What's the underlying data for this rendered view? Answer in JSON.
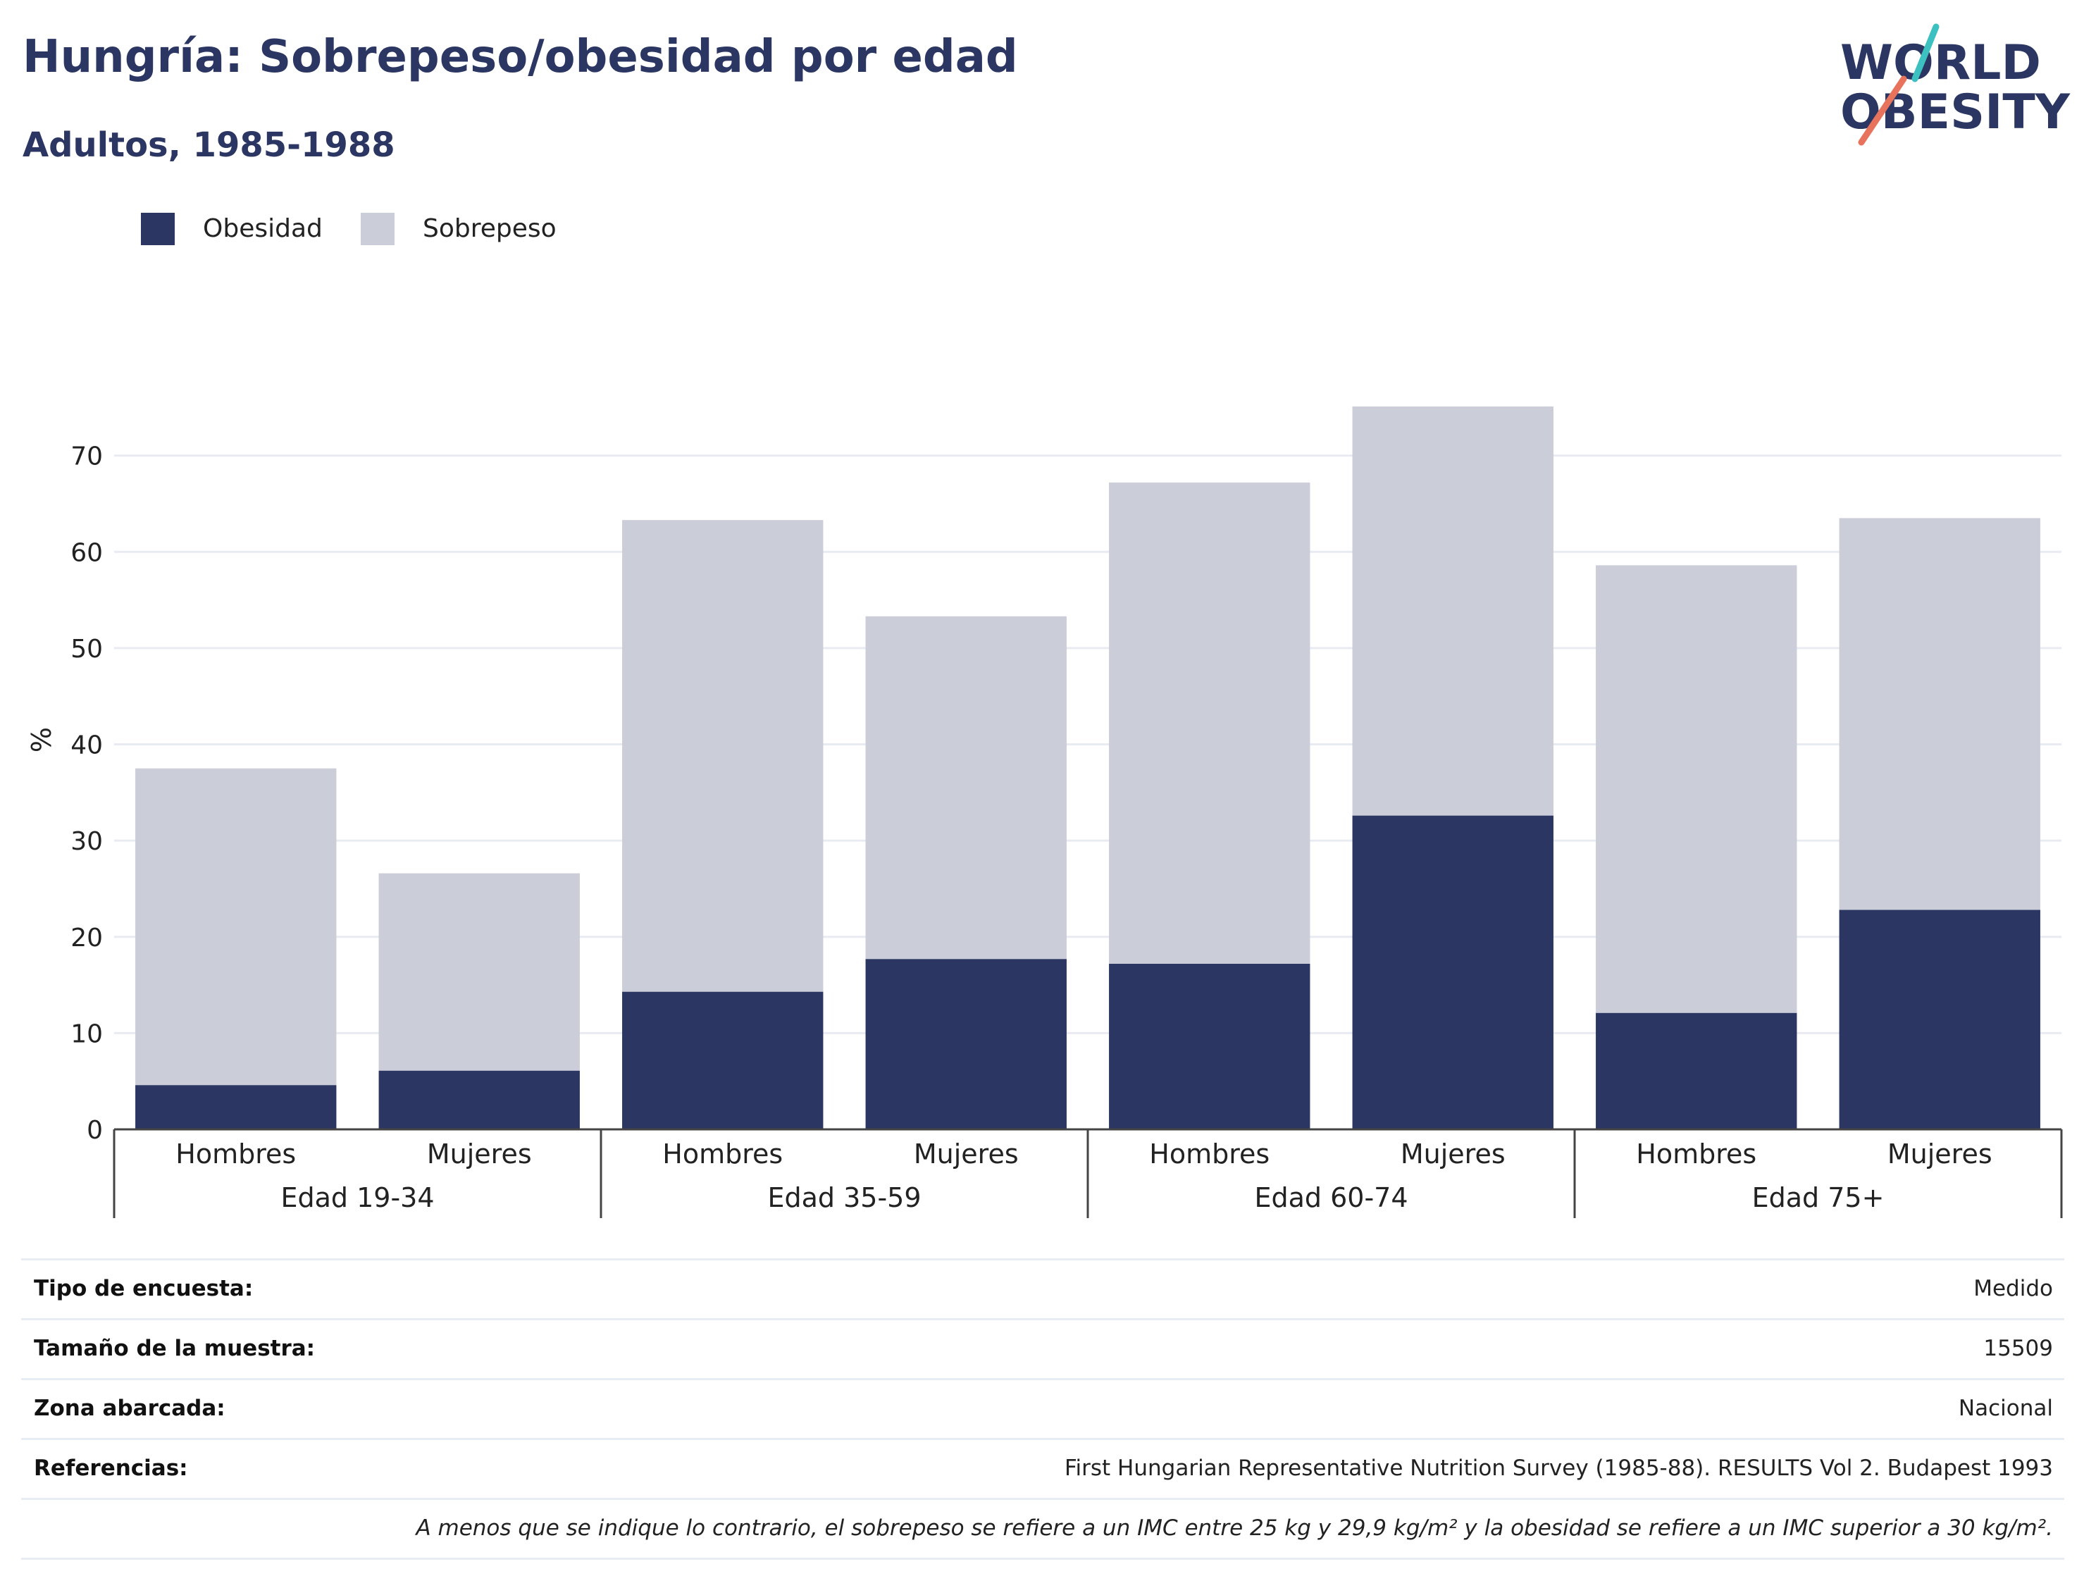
{
  "header": {
    "title": "Hungría: Sobrepeso/obesidad por edad",
    "subtitle": "Adultos, 1985-1988"
  },
  "logo": {
    "line1": "WORLD",
    "line2": "OBESITY",
    "colors": {
      "text": "#2b3663",
      "slash_teal": "#3cc0c0",
      "slash_coral": "#e8735c"
    }
  },
  "legend": [
    {
      "label": "Obesidad",
      "color": "#2b3663"
    },
    {
      "label": "Sobrepeso",
      "color": "#cbcdd9"
    }
  ],
  "chart_data": {
    "type": "bar",
    "stacked": true,
    "ylabel": "%",
    "ylim": [
      0,
      80
    ],
    "yticks": [
      0,
      10,
      20,
      30,
      40,
      50,
      60,
      70
    ],
    "grid": true,
    "legend_position": "top-left",
    "groups": [
      "Edad 19-34",
      "Edad 35-59",
      "Edad 60-74",
      "Edad 75+"
    ],
    "categories": [
      "Hombres",
      "Mujeres",
      "Hombres",
      "Mujeres",
      "Hombres",
      "Mujeres",
      "Hombres",
      "Mujeres"
    ],
    "series": [
      {
        "name": "Obesidad",
        "color": "#2b3663",
        "values": [
          4.6,
          6.1,
          14.3,
          17.7,
          17.2,
          32.6,
          12.1,
          22.8
        ]
      },
      {
        "name": "Sobrepeso",
        "color": "#cbcdd9",
        "values": [
          32.9,
          20.5,
          49.0,
          35.6,
          50.0,
          42.5,
          46.5,
          40.7
        ]
      }
    ]
  },
  "info": {
    "rows": [
      {
        "label": "Tipo de encuesta:",
        "value": "Medido"
      },
      {
        "label": "Tamaño de la muestra:",
        "value": "15509"
      },
      {
        "label": "Zona abarcada:",
        "value": "Nacional"
      },
      {
        "label": "Referencias:",
        "value": "First Hungarian Representative Nutrition Survey (1985-88). RESULTS Vol 2. Budapest 1993"
      }
    ],
    "note": "A menos que se indique lo contrario, el sobrepeso se refiere a un IMC entre 25 kg y 29,9 kg/m² y la obesidad se refiere a un IMC superior a 30 kg/m²."
  }
}
